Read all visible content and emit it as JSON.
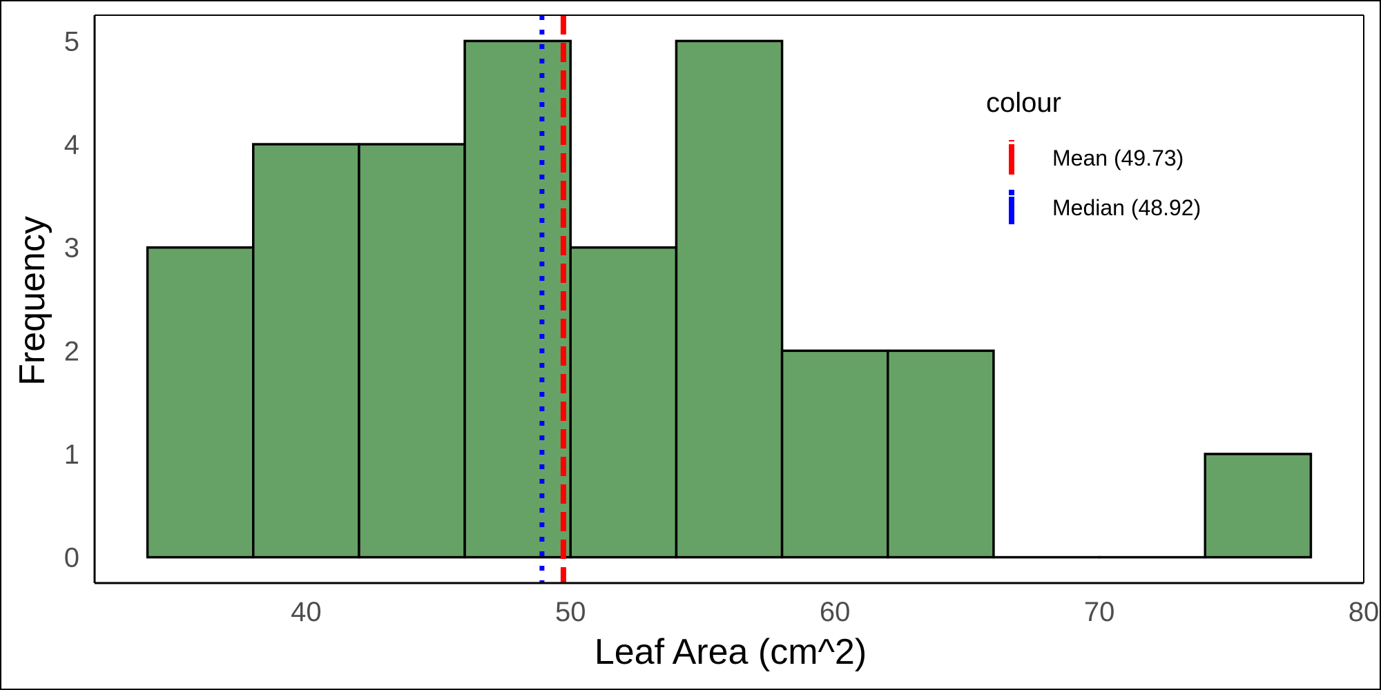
{
  "chart_data": {
    "type": "bar",
    "subtype": "histogram",
    "xlabel": "Leaf Area (cm^2)",
    "ylabel": "Frequency",
    "xlim": [
      32,
      80
    ],
    "ylim": [
      -0.25,
      5.25
    ],
    "xticks": [
      40,
      50,
      60,
      70,
      80
    ],
    "yticks": [
      0,
      1,
      2,
      3,
      4,
      5
    ],
    "bins": [
      {
        "x0": 34,
        "x1": 38,
        "count": 3
      },
      {
        "x0": 38,
        "x1": 42,
        "count": 4
      },
      {
        "x0": 42,
        "x1": 46,
        "count": 4
      },
      {
        "x0": 46,
        "x1": 50,
        "count": 5
      },
      {
        "x0": 50,
        "x1": 54,
        "count": 3
      },
      {
        "x0": 54,
        "x1": 58,
        "count": 5
      },
      {
        "x0": 58,
        "x1": 62,
        "count": 2
      },
      {
        "x0": 62,
        "x1": 66,
        "count": 2
      },
      {
        "x0": 66,
        "x1": 70,
        "count": 0
      },
      {
        "x0": 70,
        "x1": 74,
        "count": 0
      },
      {
        "x0": 74,
        "x1": 78,
        "count": 1
      }
    ],
    "bar_color": "#66a266",
    "vlines": [
      {
        "name": "Mean (49.73)",
        "value": 49.73,
        "color": "#ff0000",
        "style": "dashed"
      },
      {
        "name": "Median (48.92)",
        "value": 48.92,
        "color": "#0000ff",
        "style": "dotted"
      }
    ],
    "legend": {
      "title": "colour",
      "placement": "top-right"
    },
    "grid": false
  }
}
